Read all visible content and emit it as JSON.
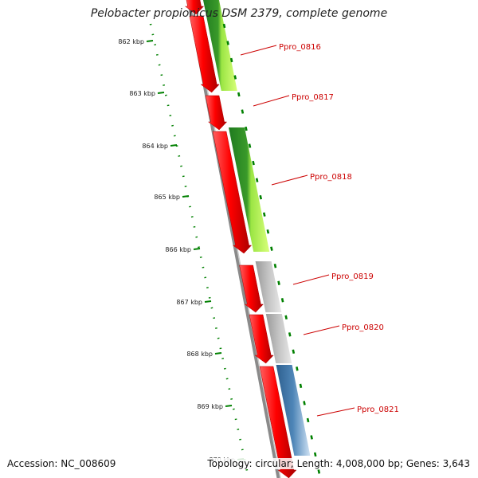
{
  "title": "Pelobacter propionicus DSM 2379, complete genome",
  "footer": {
    "accession": "Accession: NC_008609",
    "summary": "Topology: circular; Length: 4,008,000 bp; Genes: 3,643"
  },
  "scale": {
    "ticks": [
      "862 kbp",
      "863 kbp",
      "864 kbp",
      "865 kbp",
      "866 kbp",
      "867 kbp",
      "868 kbp",
      "869 kbp",
      "870 kbp"
    ]
  },
  "genes": [
    {
      "name": "Ppro_0816",
      "function_color": "#99ee33",
      "label_color": "#cc0000"
    },
    {
      "name": "Ppro_0817",
      "function_color": "#ffffff",
      "label_color": "#cc0000"
    },
    {
      "name": "Ppro_0818",
      "function_color": "#88dd22",
      "label_color": "#cc0000"
    },
    {
      "name": "Ppro_0819",
      "function_color": "#bbbbbb",
      "label_color": "#cc0000"
    },
    {
      "name": "Ppro_0820",
      "function_color": "#bbbbbb",
      "label_color": "#cc0000"
    },
    {
      "name": "Ppro_0821",
      "function_color": "#4f86b8",
      "label_color": "#cc0000"
    }
  ],
  "colors": {
    "cds": "#ff0000",
    "backbone": "#777777",
    "tick": "#008000"
  }
}
